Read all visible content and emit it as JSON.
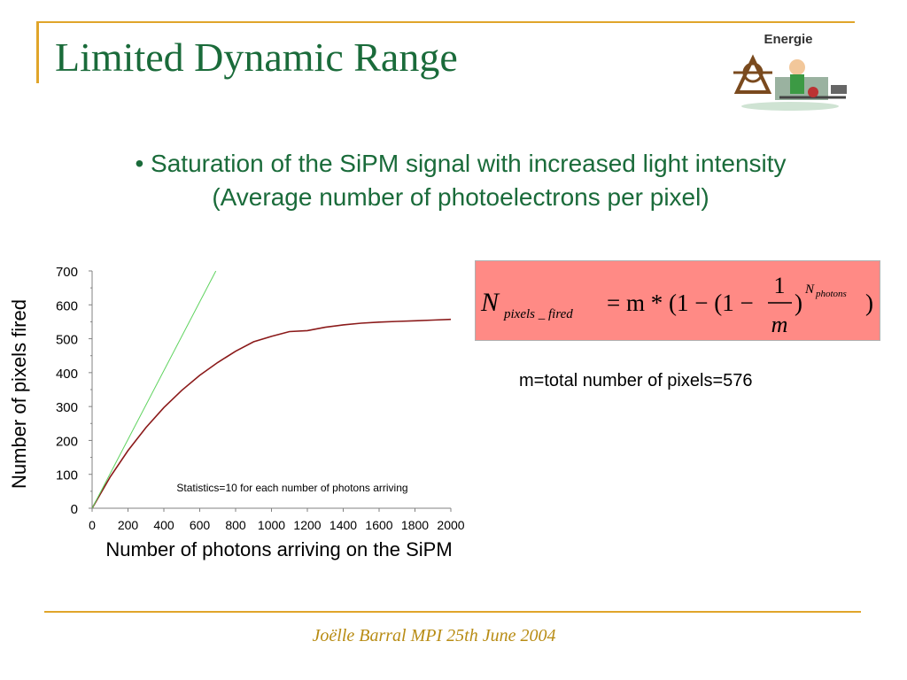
{
  "slide": {
    "title": "Limited Dynamic Range",
    "logo_text": "Energie",
    "bullet_line1": "• Saturation of the SiPM signal with increased light intensity",
    "bullet_line2": "(Average number of photoelectrons per pixel)",
    "m_note": "m=total number of pixels=576",
    "footer": "Joëlle Barral MPI 25th June 2004",
    "formula_box_color": "#ff8a85",
    "accent_color": "#1a6b3a",
    "rule_color": "#e0a52a"
  },
  "formula": {
    "N": "N",
    "n_sub": "pixels _ fired",
    "rhs_part1": "= m * (1 − (1 −",
    "frac_num": "1",
    "frac_den": "m",
    "close_inner": ")",
    "exp_N": "N",
    "exp_sub": "photons",
    "close_outer": ")"
  },
  "chart_data": {
    "type": "line",
    "xlabel": "Number of photons arriving on the SiPM",
    "ylabel": "Number of pixels fired",
    "xlim": [
      0,
      2000
    ],
    "ylim": [
      0,
      700
    ],
    "x_ticks": [
      "0",
      "200",
      "400",
      "600",
      "800",
      "1000",
      "1200",
      "1400",
      "1600",
      "1800",
      "2000"
    ],
    "y_ticks": [
      "0",
      "100",
      "200",
      "300",
      "400",
      "500",
      "600",
      "700"
    ],
    "annotation": "Statistics=10 for each number of photons arriving",
    "series": [
      {
        "color": "#8b1a1a",
        "x": [
          0,
          100,
          200,
          300,
          400,
          500,
          600,
          700,
          800,
          900,
          1000,
          1100,
          1200,
          1300,
          1400,
          1500,
          1600,
          1700,
          1800,
          1900,
          2000
        ],
        "y": [
          0,
          92,
          170,
          238,
          297,
          348,
          392,
          430,
          463,
          491,
          507,
          521,
          524,
          534,
          541,
          546,
          549,
          551,
          553,
          555,
          557
        ]
      },
      {
        "color": "#5fd35f",
        "x": [
          0,
          690
        ],
        "y": [
          0,
          700
        ]
      }
    ],
    "grid": false
  }
}
